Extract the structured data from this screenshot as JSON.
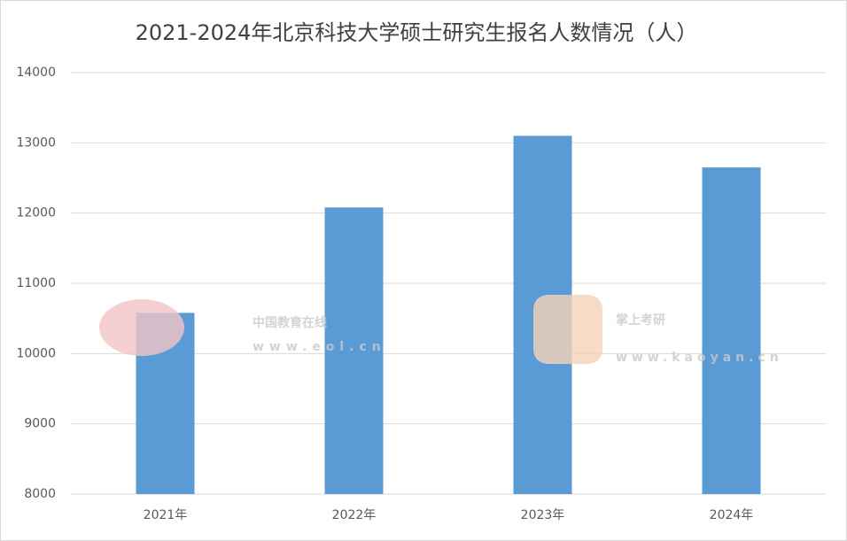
{
  "chart_data": {
    "type": "bar",
    "title": "2021-2024年北京科技大学硕士研究生报名人数情况（人）",
    "categories": [
      "2021年",
      "2022年",
      "2023年",
      "2024年"
    ],
    "values": [
      10580,
      12080,
      13100,
      12650
    ],
    "color": "#5b9bd5",
    "ylim": [
      8000,
      14000
    ],
    "yticks": [
      8000,
      9000,
      10000,
      11000,
      12000,
      13000,
      14000
    ],
    "grid": true
  },
  "watermarks": [
    "中国教育在线",
    "www.eol.cn",
    "掌上考研",
    "www.kaoyan.cn"
  ]
}
